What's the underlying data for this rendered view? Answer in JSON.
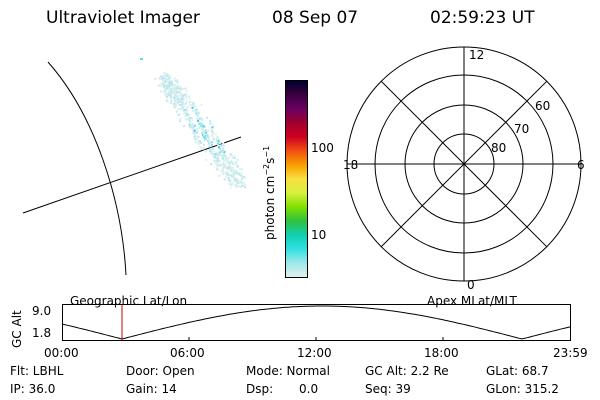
{
  "header": {
    "title": "Ultraviolet Imager",
    "date": "08 Sep 07",
    "time": "02:59:23 UT"
  },
  "colorbar": {
    "unit_label": "photon cm",
    "unit_sup1": "−2",
    "unit_s": "s",
    "unit_sup2": "−1",
    "tick_100": "100",
    "tick_10": "10",
    "colors": [
      "#000030",
      "#3a0040",
      "#6a0060",
      "#a00030",
      "#d00020",
      "#f05010",
      "#f8a000",
      "#f8e040",
      "#d8f040",
      "#80e000",
      "#30c040",
      "#10d0b0",
      "#30e0e0",
      "#a0e8e8",
      "#e0f0f0"
    ]
  },
  "polar": {
    "lbl_12": "12",
    "lbl_18": "18",
    "lbl_6": "6",
    "lbl_0": "0",
    "lbl_60": "60",
    "lbl_70": "70",
    "lbl_80": "80"
  },
  "timeline": {
    "left_title": "Geographic Lat/Lon",
    "right_title": "Apex MLat/MLT",
    "axis_label": "GC Alt",
    "y_top": "9.0",
    "y_bottom": "1.8",
    "ticks": [
      "00:00",
      "06:00",
      "12:00",
      "18:00",
      "23:59"
    ]
  },
  "info": {
    "flt": "Flt: LBHL",
    "ip": "IP: 36.0",
    "door": "Door: Open",
    "gain": "Gain: 14",
    "mode": "Mode: Normal",
    "dsp_label": "Dsp:",
    "dsp_value": "0.0",
    "gcalt": "GC Alt: 2.2 Re",
    "seq": "Seq: 39",
    "glat": "GLat: 68.7",
    "glon": "GLon: 315.2"
  }
}
